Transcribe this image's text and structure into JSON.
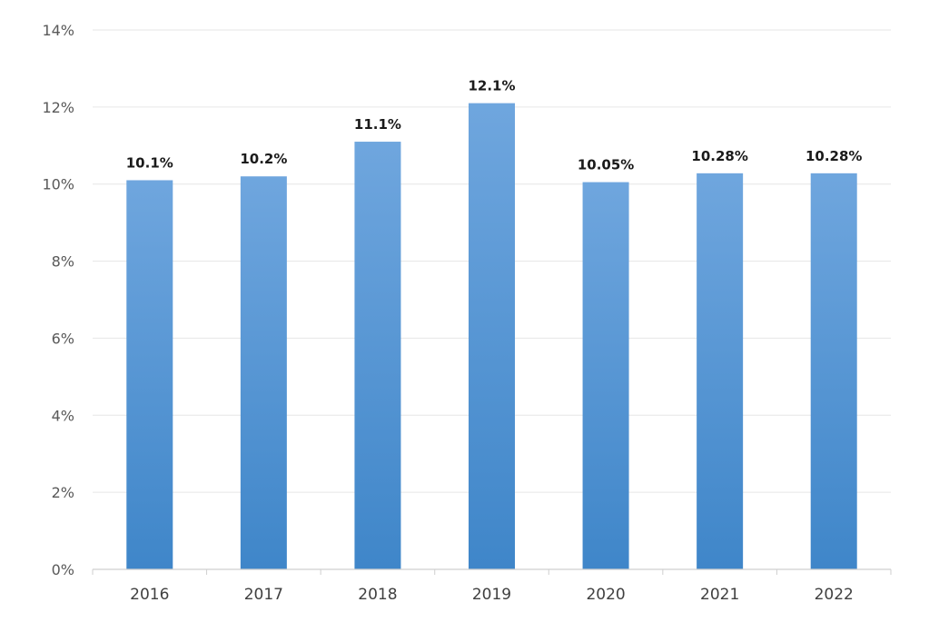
{
  "chart_data": {
    "type": "bar",
    "title": "",
    "xlabel": "",
    "ylabel": "",
    "categories": [
      "2016",
      "2017",
      "2018",
      "2019",
      "2020",
      "2021",
      "2022"
    ],
    "values": [
      10.1,
      10.2,
      11.1,
      12.1,
      10.05,
      10.28,
      10.28
    ],
    "data_labels": [
      "10.1%",
      "10.2%",
      "11.1%",
      "12.1%",
      "10.05%",
      "10.28%",
      "10.28%"
    ],
    "ylim": [
      0,
      14
    ],
    "yticks": [
      0,
      2,
      4,
      6,
      8,
      10,
      12,
      14
    ],
    "ytick_labels": [
      "0%",
      "2%",
      "4%",
      "6%",
      "8%",
      "10%",
      "12%",
      "14%"
    ],
    "grid": true,
    "legend": "none",
    "colors": {
      "bar_top": "#6fa6de",
      "bar_bottom": "#3f86c9"
    }
  }
}
